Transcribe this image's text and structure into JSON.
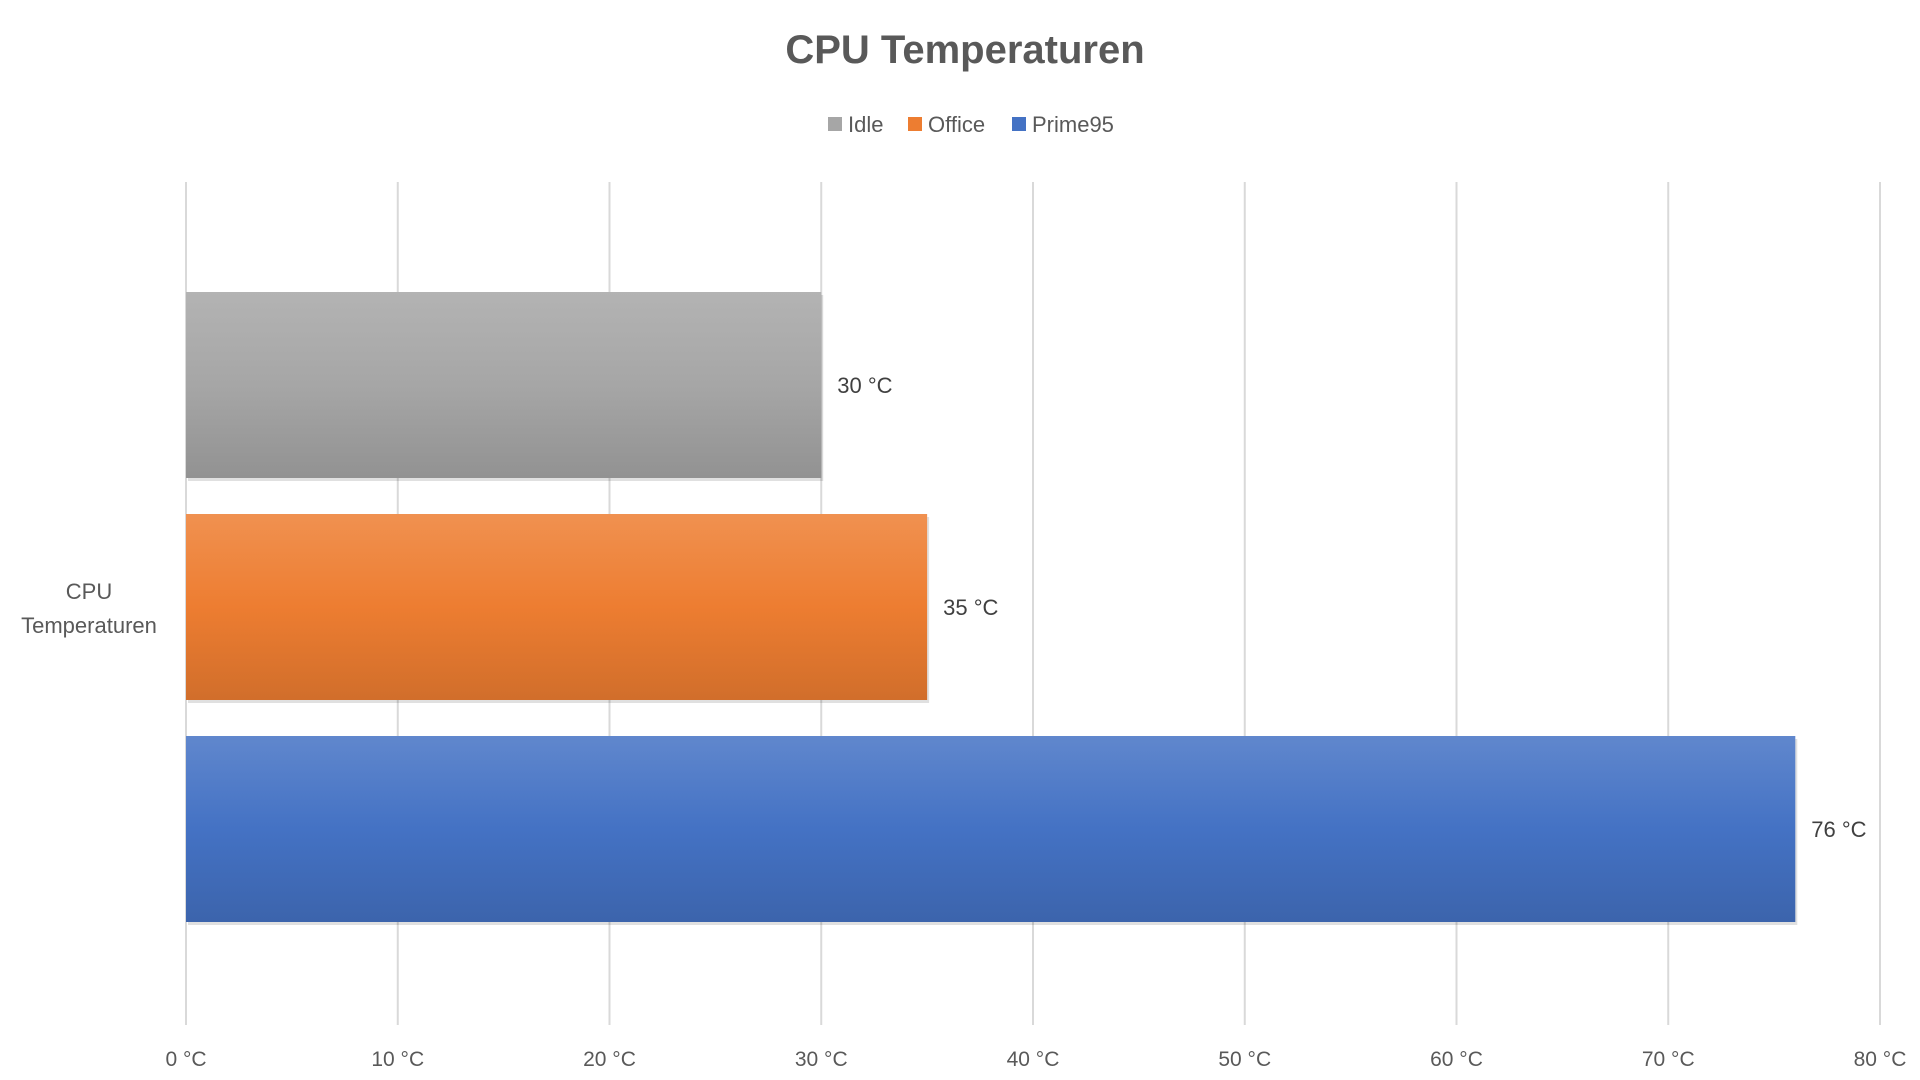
{
  "chart_data": {
    "type": "bar",
    "orientation": "horizontal",
    "title": "CPU Temperaturen",
    "categories": [
      "CPU Temperaturen"
    ],
    "category_lines": [
      "CPU",
      "Temperaturen"
    ],
    "series": [
      {
        "name": "Idle",
        "values": [
          30
        ],
        "color": "#a6a6a6",
        "label": "30 °C"
      },
      {
        "name": "Office",
        "values": [
          35
        ],
        "color": "#ed7d31",
        "label": "35 °C"
      },
      {
        "name": "Prime95",
        "values": [
          76
        ],
        "color": "#4472c4",
        "label": "76 °C"
      }
    ],
    "xlim": [
      0,
      80
    ],
    "xticks": [
      0,
      10,
      20,
      30,
      40,
      50,
      60,
      70,
      80
    ],
    "xtick_labels": [
      "0 °C",
      "10 °C",
      "20 °C",
      "30 °C",
      "40 °C",
      "50 °C",
      "60 °C",
      "70 °C",
      "80 °C"
    ],
    "xlabel": "",
    "ylabel": "",
    "grid": "vertical",
    "legend_position": "top"
  }
}
